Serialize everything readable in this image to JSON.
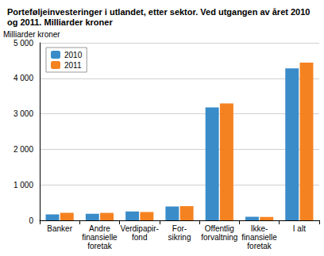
{
  "chart_data": {
    "type": "bar",
    "title": "Porteføljeinvesteringer i utlandet, etter sektor. Ved utgangen av året 2010\nog 2011. Milliarder kroner",
    "y_label": "Milliarder kroner",
    "categories": [
      "Banker",
      "Andre\nfinansielle\nforetak",
      "Verdipapir-\nfond",
      "For-\nsikring",
      "Offentlig\nforvaltning",
      "Ikke-\nfinansielle\nforetak",
      "I alt"
    ],
    "series": [
      {
        "name": "2010",
        "color": "#3a8cc8",
        "values": [
          170,
          185,
          250,
          390,
          3180,
          100,
          4280
        ]
      },
      {
        "name": "2011",
        "color": "#f58220",
        "values": [
          210,
          210,
          235,
          400,
          3290,
          95,
          4440
        ]
      }
    ],
    "ylim": [
      0,
      5000
    ],
    "yticks": [
      0,
      {
        "value": 1000,
        "label": "1 000"
      },
      {
        "value": 2000,
        "label": "2 000"
      },
      {
        "value": 3000,
        "label": "3 000"
      },
      {
        "value": 4000,
        "label": "4 000"
      },
      {
        "value": 5000,
        "label": "5 000"
      }
    ],
    "grid": true,
    "legend": "top-left"
  }
}
